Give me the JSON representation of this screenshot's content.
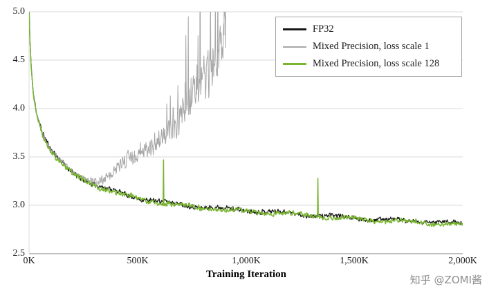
{
  "chart_data": {
    "type": "line",
    "title": "",
    "xlabel": "Training Iteration",
    "ylabel": "",
    "xlim": [
      0,
      2000
    ],
    "ylim": [
      2.5,
      5.0
    ],
    "grid": "horizontal",
    "legend_position": "top-right",
    "colors": {
      "grid": "#d9d9d9",
      "axis": "#808080",
      "text": "#1a1a1a"
    },
    "x_ticks": [
      0,
      500,
      1000,
      1500,
      2000
    ],
    "x_tick_labels": [
      "0K",
      "500K",
      "1,000K",
      "1,500K",
      "2,000K"
    ],
    "y_ticks": [
      5.0,
      4.5,
      4.0,
      3.5,
      3.0,
      2.5
    ],
    "y_tick_labels": [
      "5.0",
      "4.5",
      "4.0",
      "3.5",
      "3.0",
      "2.5"
    ],
    "series": [
      {
        "name": "FP32",
        "color": "#161616",
        "width": 1.3,
        "seed": 11,
        "step": 2,
        "x_end": 2000,
        "noise": [
          [
            0,
            0.012
          ],
          [
            40,
            0.028
          ],
          [
            150,
            0.034
          ],
          [
            400,
            0.03
          ],
          [
            2000,
            0.027
          ]
        ],
        "keypoints": [
          [
            0,
            5.08
          ],
          [
            4,
            4.72
          ],
          [
            10,
            4.44
          ],
          [
            20,
            4.16
          ],
          [
            35,
            3.96
          ],
          [
            60,
            3.76
          ],
          [
            100,
            3.57
          ],
          [
            150,
            3.44
          ],
          [
            200,
            3.34
          ],
          [
            260,
            3.26
          ],
          [
            320,
            3.2
          ],
          [
            400,
            3.14
          ],
          [
            500,
            3.08
          ],
          [
            600,
            3.04
          ],
          [
            700,
            3.01
          ],
          [
            800,
            2.985
          ],
          [
            900,
            2.965
          ],
          [
            1000,
            2.95
          ],
          [
            1100,
            2.935
          ],
          [
            1200,
            2.92
          ],
          [
            1300,
            2.9
          ],
          [
            1400,
            2.885
          ],
          [
            1500,
            2.87
          ],
          [
            1600,
            2.855
          ],
          [
            1700,
            2.845
          ],
          [
            1800,
            2.835
          ],
          [
            1900,
            2.822
          ],
          [
            2000,
            2.812
          ]
        ]
      },
      {
        "name": "Mixed Precision, loss scale 1",
        "color": "#a6a6a6",
        "width": 1.0,
        "seed": 29,
        "step": 1.6,
        "x_end": 910,
        "asym_start": 380,
        "burst": {
          "start": 430,
          "prob": 0.06,
          "mult": 2.1
        },
        "noise": [
          [
            0,
            0.015
          ],
          [
            40,
            0.03
          ],
          [
            200,
            0.035
          ],
          [
            330,
            0.05
          ],
          [
            420,
            0.1
          ],
          [
            520,
            0.14
          ],
          [
            620,
            0.2
          ],
          [
            720,
            0.28
          ],
          [
            820,
            0.36
          ],
          [
            910,
            0.42
          ]
        ],
        "spikes": [
          [
            735,
            4.95
          ],
          [
            788,
            6.3
          ],
          [
            836,
            5.15
          ],
          [
            871,
            5.65
          ],
          [
            900,
            6.5
          ],
          [
            908,
            5.9
          ]
        ],
        "keypoints": [
          [
            0,
            5.07
          ],
          [
            4,
            4.71
          ],
          [
            10,
            4.43
          ],
          [
            20,
            4.16
          ],
          [
            35,
            3.95
          ],
          [
            60,
            3.76
          ],
          [
            100,
            3.57
          ],
          [
            150,
            3.44
          ],
          [
            200,
            3.34
          ],
          [
            260,
            3.27
          ],
          [
            320,
            3.25
          ],
          [
            360,
            3.29
          ],
          [
            400,
            3.34
          ],
          [
            440,
            3.4
          ],
          [
            480,
            3.45
          ],
          [
            520,
            3.5
          ],
          [
            560,
            3.56
          ],
          [
            600,
            3.63
          ],
          [
            640,
            3.7
          ],
          [
            680,
            3.79
          ],
          [
            720,
            3.9
          ],
          [
            760,
            4.02
          ],
          [
            800,
            4.17
          ],
          [
            840,
            4.32
          ],
          [
            870,
            4.46
          ],
          [
            895,
            4.6
          ],
          [
            910,
            4.75
          ]
        ]
      },
      {
        "name": "Mixed Precision, loss scale 128",
        "color": "#79b530",
        "width": 1.5,
        "seed": 47,
        "step": 2,
        "x_end": 2000,
        "noise": [
          [
            0,
            0.012
          ],
          [
            40,
            0.03
          ],
          [
            150,
            0.036
          ],
          [
            400,
            0.032
          ],
          [
            2000,
            0.028
          ]
        ],
        "spikes": [
          [
            620,
            3.47
          ],
          [
            1332,
            3.28
          ]
        ],
        "keypoints": [
          [
            0,
            5.06
          ],
          [
            4,
            4.7
          ],
          [
            10,
            4.42
          ],
          [
            20,
            4.15
          ],
          [
            35,
            3.95
          ],
          [
            60,
            3.75
          ],
          [
            100,
            3.56
          ],
          [
            150,
            3.43
          ],
          [
            200,
            3.33
          ],
          [
            260,
            3.25
          ],
          [
            320,
            3.19
          ],
          [
            400,
            3.13
          ],
          [
            500,
            3.07
          ],
          [
            600,
            3.03
          ],
          [
            700,
            3.0
          ],
          [
            800,
            2.975
          ],
          [
            900,
            2.955
          ],
          [
            1000,
            2.94
          ],
          [
            1100,
            2.925
          ],
          [
            1200,
            2.91
          ],
          [
            1300,
            2.895
          ],
          [
            1400,
            2.875
          ],
          [
            1500,
            2.86
          ],
          [
            1600,
            2.845
          ],
          [
            1700,
            2.835
          ],
          [
            1800,
            2.825
          ],
          [
            1900,
            2.81
          ],
          [
            2000,
            2.8
          ]
        ]
      }
    ]
  },
  "watermark": {
    "text": "知乎 @ZOMI酱"
  }
}
